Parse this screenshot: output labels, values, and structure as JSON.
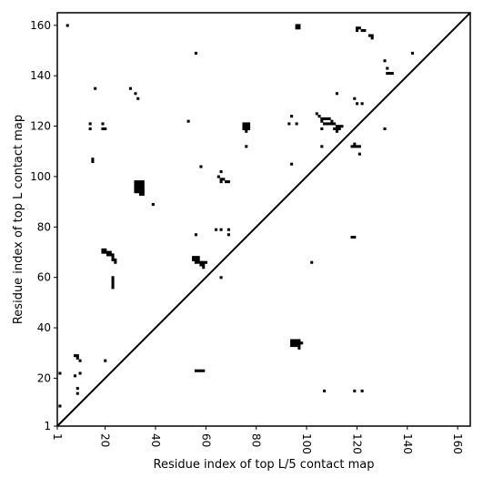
{
  "chart_data": {
    "type": "scatter",
    "title": "",
    "xlabel": "Residue index of top L/5 contact map",
    "ylabel": "Residue index of top L contact map",
    "xlim": [
      1,
      165
    ],
    "ylim": [
      1,
      165
    ],
    "xticks": [
      1,
      20,
      40,
      60,
      80,
      100,
      120,
      140,
      160
    ],
    "yticks": [
      1,
      20,
      40,
      60,
      80,
      100,
      120,
      140,
      160
    ],
    "grid": false,
    "diagonal_line": true,
    "marker": "filled-square",
    "marker_color": "#000000",
    "series": [
      {
        "values_note": "",
        "points": [
          [
            5,
            160
          ],
          [
            96,
            160
          ],
          [
            97,
            160
          ],
          [
            96,
            159
          ],
          [
            97,
            159
          ],
          [
            120,
            159
          ],
          [
            121,
            159
          ],
          [
            120,
            158
          ],
          [
            122,
            158
          ],
          [
            123,
            158
          ],
          [
            125,
            156
          ],
          [
            126,
            156
          ],
          [
            126,
            155
          ],
          [
            131,
            146
          ],
          [
            142,
            149
          ],
          [
            56,
            149
          ],
          [
            132,
            143
          ],
          [
            132,
            141
          ],
          [
            133,
            141
          ],
          [
            134,
            141
          ],
          [
            16,
            135
          ],
          [
            30,
            135
          ],
          [
            32,
            133
          ],
          [
            33,
            131
          ],
          [
            112,
            133
          ],
          [
            119,
            131
          ],
          [
            120,
            129
          ],
          [
            122,
            129
          ],
          [
            14,
            121
          ],
          [
            19,
            121
          ],
          [
            14,
            119
          ],
          [
            19,
            119
          ],
          [
            20,
            119
          ],
          [
            53,
            122
          ],
          [
            94,
            124
          ],
          [
            104,
            125
          ],
          [
            105,
            124
          ],
          [
            106,
            123
          ],
          [
            107,
            123
          ],
          [
            108,
            123
          ],
          [
            109,
            123
          ],
          [
            110,
            122
          ],
          [
            106,
            122
          ],
          [
            107,
            121
          ],
          [
            108,
            121
          ],
          [
            109,
            121
          ],
          [
            110,
            121
          ],
          [
            111,
            121
          ],
          [
            112,
            120
          ],
          [
            113,
            120
          ],
          [
            114,
            120
          ],
          [
            111,
            119
          ],
          [
            112,
            119
          ],
          [
            113,
            119
          ],
          [
            112,
            118
          ],
          [
            106,
            119
          ],
          [
            93,
            121
          ],
          [
            96,
            121
          ],
          [
            75,
            121
          ],
          [
            76,
            121
          ],
          [
            77,
            121
          ],
          [
            75,
            120
          ],
          [
            76,
            120
          ],
          [
            77,
            120
          ],
          [
            75,
            119
          ],
          [
            76,
            119
          ],
          [
            77,
            119
          ],
          [
            76,
            118
          ],
          [
            131,
            119
          ],
          [
            76,
            112
          ],
          [
            106,
            112
          ],
          [
            118,
            112
          ],
          [
            119,
            112
          ],
          [
            120,
            112
          ],
          [
            121,
            112
          ],
          [
            119,
            113
          ],
          [
            121,
            109
          ],
          [
            15,
            107
          ],
          [
            15,
            106
          ],
          [
            94,
            105
          ],
          [
            58,
            104
          ],
          [
            66,
            102
          ],
          [
            65,
            100
          ],
          [
            66,
            99
          ],
          [
            67,
            99
          ],
          [
            68,
            98
          ],
          [
            69,
            98
          ],
          [
            66,
            98
          ],
          [
            32,
            98
          ],
          [
            33,
            98
          ],
          [
            34,
            98
          ],
          [
            35,
            98
          ],
          [
            32,
            97
          ],
          [
            33,
            97
          ],
          [
            34,
            97
          ],
          [
            35,
            97
          ],
          [
            32,
            96
          ],
          [
            33,
            96
          ],
          [
            34,
            96
          ],
          [
            35,
            96
          ],
          [
            32,
            95
          ],
          [
            33,
            95
          ],
          [
            34,
            95
          ],
          [
            35,
            95
          ],
          [
            32,
            94
          ],
          [
            33,
            94
          ],
          [
            34,
            94
          ],
          [
            35,
            94
          ],
          [
            34,
            93
          ],
          [
            35,
            93
          ],
          [
            39,
            89
          ],
          [
            64,
            79
          ],
          [
            66,
            79
          ],
          [
            69,
            79
          ],
          [
            69,
            77
          ],
          [
            56,
            77
          ],
          [
            118,
            76
          ],
          [
            119,
            76
          ],
          [
            19,
            71
          ],
          [
            20,
            71
          ],
          [
            19,
            70
          ],
          [
            20,
            70
          ],
          [
            21,
            70
          ],
          [
            22,
            70
          ],
          [
            21,
            69
          ],
          [
            22,
            69
          ],
          [
            23,
            69
          ],
          [
            23,
            68
          ],
          [
            23,
            67
          ],
          [
            24,
            67
          ],
          [
            24,
            66
          ],
          [
            102,
            66
          ],
          [
            55,
            68
          ],
          [
            56,
            68
          ],
          [
            57,
            68
          ],
          [
            55,
            67
          ],
          [
            56,
            67
          ],
          [
            57,
            67
          ],
          [
            56,
            66
          ],
          [
            57,
            66
          ],
          [
            58,
            66
          ],
          [
            59,
            66
          ],
          [
            60,
            66
          ],
          [
            58,
            65
          ],
          [
            59,
            65
          ],
          [
            59,
            64
          ],
          [
            23,
            60
          ],
          [
            23,
            59
          ],
          [
            23,
            58
          ],
          [
            23,
            57
          ],
          [
            23,
            56
          ],
          [
            66,
            60
          ],
          [
            94,
            35
          ],
          [
            95,
            35
          ],
          [
            96,
            35
          ],
          [
            97,
            35
          ],
          [
            94,
            34
          ],
          [
            95,
            34
          ],
          [
            96,
            34
          ],
          [
            97,
            34
          ],
          [
            98,
            34
          ],
          [
            94,
            33
          ],
          [
            95,
            33
          ],
          [
            96,
            33
          ],
          [
            97,
            33
          ],
          [
            97,
            32
          ],
          [
            8,
            29
          ],
          [
            9,
            29
          ],
          [
            9,
            28
          ],
          [
            10,
            27
          ],
          [
            20,
            27
          ],
          [
            2,
            22
          ],
          [
            10,
            22
          ],
          [
            8,
            21
          ],
          [
            56,
            23
          ],
          [
            57,
            23
          ],
          [
            58,
            23
          ],
          [
            59,
            23
          ],
          [
            107,
            15
          ],
          [
            119,
            15
          ],
          [
            122,
            15
          ],
          [
            9,
            16
          ],
          [
            9,
            14
          ],
          [
            2,
            9
          ]
        ]
      }
    ]
  }
}
